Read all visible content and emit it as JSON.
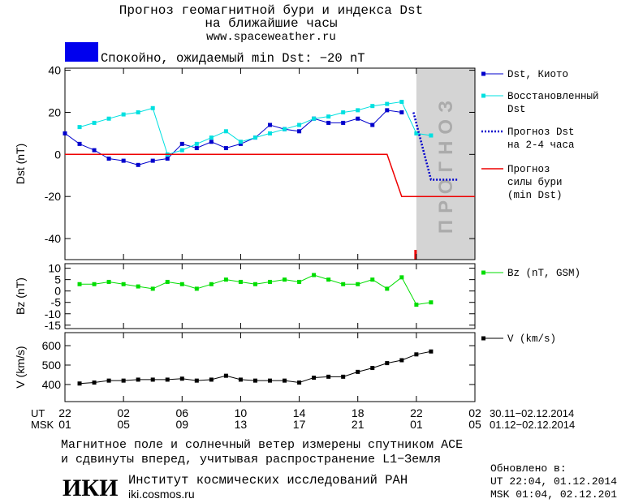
{
  "header": {
    "title": "Прогноз геомагнитной бури и индекса Dst",
    "subtitle": "на ближайшие часы",
    "url": "www.spaceweather.ru"
  },
  "status": {
    "text": "Спокойно, ожидаемый min Dst: −20 nT",
    "color": "#0000ee"
  },
  "chart_data": [
    {
      "type": "line",
      "ylabel": "Dst (nT)",
      "xlim": [
        0,
        28
      ],
      "ylim": [
        -50,
        41
      ],
      "yticks": [
        -40,
        -20,
        0,
        20,
        40
      ],
      "shade": {
        "xlim": [
          24,
          28
        ],
        "label": "ПРОГНОЗ",
        "color": "#d4d4d4"
      },
      "now": {
        "x": 24,
        "color": "#ee0000"
      },
      "series": [
        {
          "name": "Dst, Киото",
          "color": "#0000cc",
          "marker": "square",
          "x": [
            0,
            1,
            2,
            3,
            4,
            5,
            6,
            7,
            8,
            9,
            10,
            11,
            12,
            13,
            14,
            15,
            16,
            17,
            18,
            19,
            20,
            21,
            22,
            23
          ],
          "values": [
            10,
            5,
            2,
            -2,
            -3,
            -5,
            -3,
            -2,
            5,
            3,
            6,
            3,
            5,
            8,
            14,
            12,
            11,
            17,
            15,
            15,
            17,
            14,
            21,
            20
          ]
        },
        {
          "name": "Восстановленный\nDst",
          "color": "#00e0e0",
          "marker": "square",
          "x": [
            1,
            2,
            3,
            4,
            5,
            6,
            7,
            8,
            9,
            10,
            11,
            12,
            13,
            14,
            15,
            16,
            17,
            18,
            19,
            20,
            21,
            22,
            23,
            24,
            25
          ],
          "values": [
            13,
            15,
            17,
            19,
            20,
            22,
            0,
            2,
            5,
            8,
            11,
            6,
            8,
            10,
            12,
            14,
            17,
            18,
            20,
            21,
            23,
            24,
            25,
            10,
            9
          ]
        },
        {
          "name": "Прогноз Dst\nна 2-4 часа",
          "color": "#0000cc",
          "dash": "dot",
          "x": [
            23.8,
            25,
            26.8
          ],
          "values": [
            20,
            -12,
            -12
          ]
        },
        {
          "name": "Прогноз\nсилы бури\n(min Dst)",
          "color": "#ee0000",
          "x": [
            0,
            22,
            23,
            28
          ],
          "values": [
            0,
            0,
            -20,
            -20
          ]
        }
      ]
    },
    {
      "type": "line",
      "ylabel": "Bz (nT)",
      "xlim": [
        0,
        28
      ],
      "ylim": [
        -16.5,
        12
      ],
      "yticks": [
        -15,
        -10,
        -5,
        0,
        5,
        10
      ],
      "series": [
        {
          "name": "Bz (nT, GSM)",
          "color": "#00dd00",
          "marker": "square",
          "x": [
            1,
            2,
            3,
            4,
            5,
            6,
            7,
            8,
            9,
            10,
            11,
            12,
            13,
            14,
            15,
            16,
            17,
            18,
            19,
            20,
            21,
            22,
            23,
            24,
            25
          ],
          "values": [
            3,
            3,
            4,
            3,
            2,
            1,
            4,
            3,
            1,
            3,
            5,
            4,
            3,
            4,
            5,
            4,
            7,
            5,
            3,
            3,
            5,
            1,
            6,
            -6,
            -5
          ]
        }
      ]
    },
    {
      "type": "line",
      "ylabel": "V (km/s)",
      "xlim": [
        0,
        28
      ],
      "ylim": [
        312,
        667
      ],
      "yticks": [
        400,
        500,
        600
      ],
      "xticks": [
        {
          "value": 0,
          "label": "22"
        },
        {
          "value": 4,
          "label": "02"
        },
        {
          "value": 8,
          "label": "06"
        },
        {
          "value": 12,
          "label": "10"
        },
        {
          "value": 16,
          "label": "14"
        },
        {
          "value": 20,
          "label": "18"
        },
        {
          "value": 24,
          "label": "22"
        },
        {
          "value": 28,
          "label": "02"
        }
      ],
      "xticks_msk": [
        {
          "value": 0,
          "label": "01"
        },
        {
          "value": 4,
          "label": "05"
        },
        {
          "value": 8,
          "label": "09"
        },
        {
          "value": 12,
          "label": "13"
        },
        {
          "value": 16,
          "label": "17"
        },
        {
          "value": 20,
          "label": "21"
        },
        {
          "value": 24,
          "label": "01"
        },
        {
          "value": 28,
          "label": "05"
        }
      ],
      "xrow_labels": [
        "UT",
        "MSK"
      ],
      "xrow_dates": [
        "30.11−02.12.2014",
        "01.12−02.12.2014"
      ],
      "series": [
        {
          "name": "V (km/s)",
          "color": "#000000",
          "marker": "square",
          "x": [
            1,
            2,
            3,
            4,
            5,
            6,
            7,
            8,
            9,
            10,
            11,
            12,
            13,
            14,
            15,
            16,
            17,
            18,
            19,
            20,
            21,
            22,
            23,
            24,
            25
          ],
          "values": [
            405,
            410,
            420,
            420,
            425,
            425,
            425,
            430,
            420,
            425,
            445,
            425,
            420,
            420,
            420,
            410,
            435,
            440,
            440,
            465,
            485,
            510,
            525,
            555,
            570
          ]
        }
      ]
    }
  ],
  "footer": {
    "note1": "Магнитное поле и солнечный ветер измерены спутником ACE",
    "note2": "и сдвинуты вперед, учитывая распространение L1−Земля",
    "logo": "ИКИ",
    "institute": "Институт космических исследований РАН",
    "site": "iki.cosmos.ru",
    "updated": "Обновлено в:",
    "updated_ut": "UT  22:04, 01.12.2014",
    "updated_msk": "MSK 01:04, 02.12.2014"
  }
}
